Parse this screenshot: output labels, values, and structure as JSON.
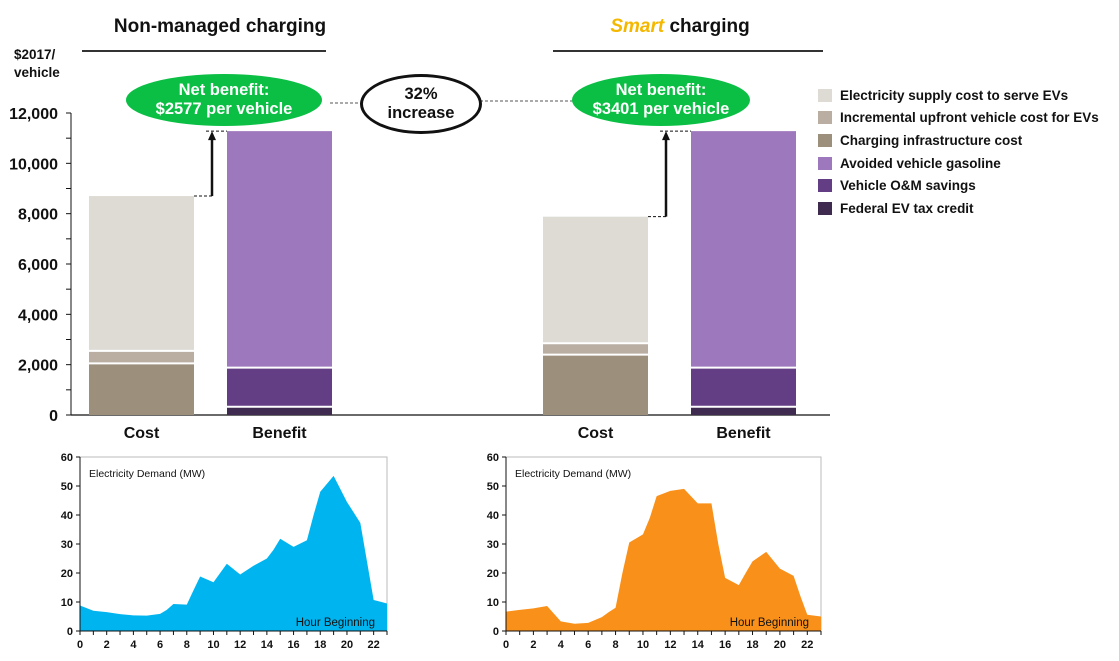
{
  "headers": {
    "left": "Non-managed charging",
    "right_emph": "Smart",
    "right_rest": " charging"
  },
  "colors": {
    "smart_accent": "#f5b800",
    "net_benefit_bubble": "#0bbf45",
    "electricity": "#dedbd4",
    "upfront": "#b9aea1",
    "infrastructure": "#9c8f7c",
    "gasoline": "#9e78bd",
    "om": "#633e84",
    "tax": "#3f2a50",
    "area_nonmanaged": "#00b4f0",
    "area_smart": "#f99019"
  },
  "callouts": {
    "left_line1": "Net benefit:",
    "left_line2": "$2577 per vehicle",
    "right_line1": "Net benefit:",
    "right_line2": "$3401 per vehicle",
    "increase_line1": "32%",
    "increase_line2": "increase"
  },
  "legend": [
    {
      "label": "Electricity supply cost to serve EVs",
      "color": "#dedbd4"
    },
    {
      "label": "Incremental upfront vehicle cost for EVs",
      "color": "#b9aea1"
    },
    {
      "label": "Charging infrastructure cost",
      "color": "#9c8f7c"
    },
    {
      "label": "Avoided vehicle gasoline",
      "color": "#9e78bd"
    },
    {
      "label": "Vehicle O&M savings",
      "color": "#633e84"
    },
    {
      "label": "Federal EV tax credit",
      "color": "#3f2a50"
    }
  ],
  "chart_data": [
    {
      "type": "bar",
      "stacked": true,
      "ylabel": "$2017/ vehicle",
      "ylim": [
        0,
        12000
      ],
      "yticks": [
        "0",
        "2,000",
        "4,000",
        "6,000",
        "8,000",
        "10,000",
        "12,000"
      ],
      "categories": [
        "Cost",
        "Benefit",
        "Cost",
        "Benefit"
      ],
      "groups": [
        "Non-managed charging",
        "Smart charging"
      ],
      "series": [
        {
          "name": "Charging infrastructure cost",
          "values": [
            2050,
            0,
            2400,
            0
          ]
        },
        {
          "name": "Incremental upfront vehicle cost for EVs",
          "values": [
            500,
            0,
            450,
            0
          ]
        },
        {
          "name": "Electricity supply cost to serve EVs",
          "values": [
            6150,
            0,
            5030,
            0
          ]
        },
        {
          "name": "Federal EV tax credit",
          "values": [
            0,
            330,
            0,
            330
          ]
        },
        {
          "name": "Vehicle O&M savings",
          "values": [
            0,
            1550,
            0,
            1550
          ]
        },
        {
          "name": "Avoided vehicle gasoline",
          "values": [
            0,
            9400,
            0,
            9400
          ]
        }
      ]
    },
    {
      "type": "area",
      "title": "Electricity Demand (MW)",
      "xlabel": "Hour Beginning",
      "xlim": [
        0,
        23
      ],
      "ylim": [
        0,
        60
      ],
      "xticks": [
        "0",
        "2",
        "4",
        "6",
        "8",
        "10",
        "12",
        "14",
        "16",
        "18",
        "20",
        "22"
      ],
      "yticks": [
        "0",
        "10",
        "20",
        "30",
        "40",
        "50",
        "60"
      ],
      "x": [
        0,
        1,
        2,
        3,
        4,
        5,
        6,
        6.5,
        7,
        8,
        8.5,
        9,
        10,
        10.5,
        11,
        12,
        13,
        14,
        14.5,
        15,
        16,
        17,
        17.5,
        18,
        19,
        20,
        21,
        22,
        23
      ],
      "y": [
        8.8,
        7,
        6.5,
        5.8,
        5.4,
        5.3,
        5.9,
        7.3,
        9.3,
        9.1,
        14,
        18.8,
        16.8,
        20,
        23.2,
        19.5,
        22.5,
        25,
        28,
        31.8,
        29,
        31.3,
        40,
        48,
        53.5,
        44.5,
        37.3,
        10.7,
        9.5
      ]
    },
    {
      "type": "area",
      "title": "Electricity Demand (MW)",
      "xlabel": "Hour Beginning",
      "xlim": [
        0,
        23
      ],
      "ylim": [
        0,
        60
      ],
      "xticks": [
        "0",
        "2",
        "4",
        "6",
        "8",
        "10",
        "12",
        "14",
        "16",
        "18",
        "20",
        "22"
      ],
      "yticks": [
        "0",
        "10",
        "20",
        "30",
        "40",
        "50",
        "60"
      ],
      "x": [
        0,
        1,
        2,
        3,
        4,
        5,
        6,
        7,
        7.5,
        8,
        8.5,
        9,
        10,
        10.5,
        11,
        12,
        13,
        14,
        15,
        15.5,
        16,
        17,
        17.5,
        18,
        19,
        20,
        21,
        21.5,
        22,
        23
      ],
      "y": [
        6.7,
        7.3,
        7.8,
        8.6,
        3.3,
        2.5,
        2.8,
        4.8,
        6.5,
        8,
        20,
        30.5,
        33.3,
        39,
        46.5,
        48.3,
        49,
        44,
        44,
        30,
        18.3,
        15.8,
        20,
        24,
        27.3,
        21.5,
        19,
        12,
        5.6,
        5
      ]
    }
  ]
}
